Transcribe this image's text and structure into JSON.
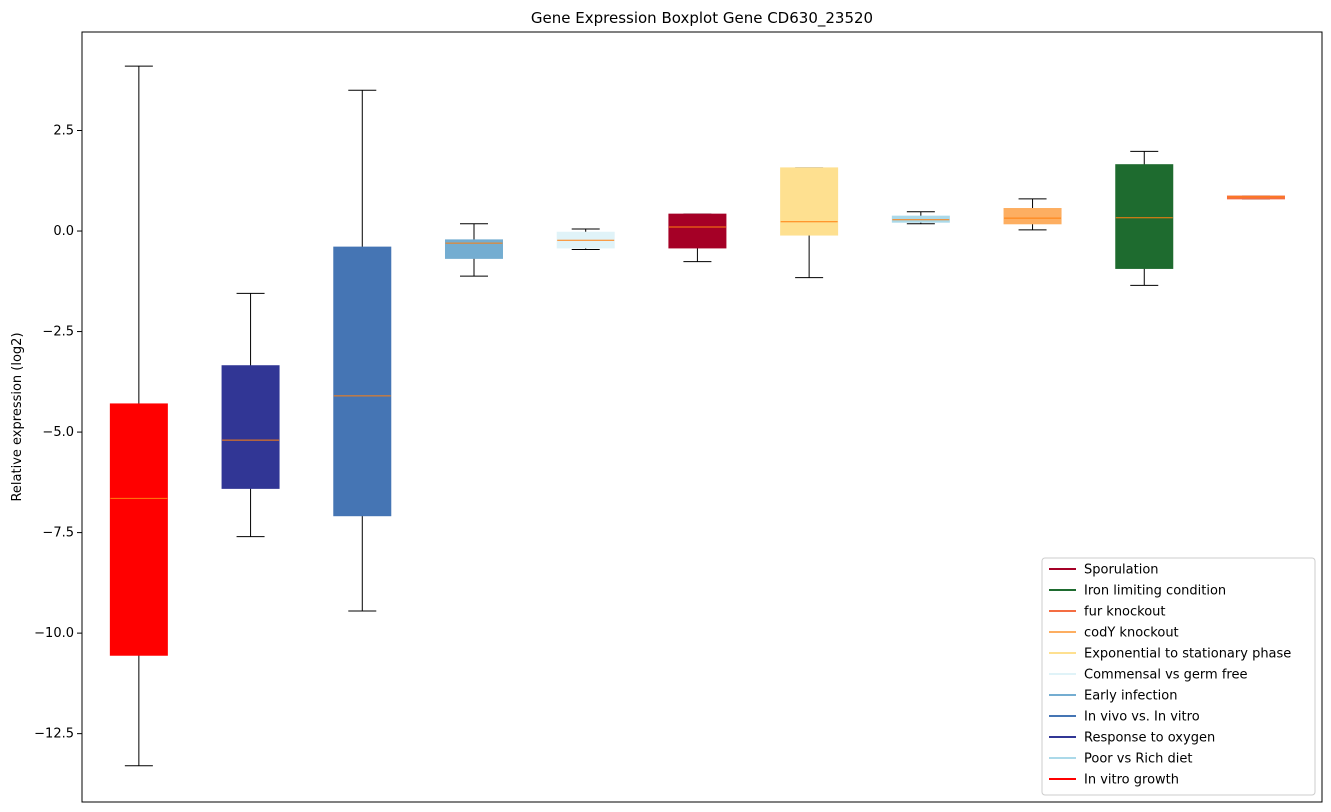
{
  "chart_data": {
    "type": "boxplot",
    "title": "Gene Expression Boxplot Gene CD630_23520",
    "xlabel": "",
    "ylabel": "Relative expression (log2)",
    "ylim": [
      -14.2,
      4.95
    ],
    "yticks": [
      -12.5,
      -10.0,
      -7.5,
      -5.0,
      -2.5,
      0.0,
      2.5
    ],
    "ytick_labels": [
      "−12.5",
      "−10.0",
      "−7.5",
      "−5.0",
      "−2.5",
      "0.0",
      "2.5"
    ],
    "grid": false,
    "legend_position": "lower-right",
    "median_color": "#ff7f0e",
    "boxes": [
      {
        "color": "#ff0000",
        "whisker_low": -13.3,
        "q1": -10.55,
        "median": -6.65,
        "q3": -4.3,
        "whisker_high": 4.1
      },
      {
        "color": "#313695",
        "whisker_low": -7.6,
        "q1": -6.4,
        "median": -5.2,
        "q3": -3.35,
        "whisker_high": -1.55
      },
      {
        "color": "#4575b4",
        "whisker_low": -9.45,
        "q1": -7.08,
        "median": -4.1,
        "q3": -0.4,
        "whisker_high": 3.5
      },
      {
        "color": "#74add1",
        "whisker_low": -1.12,
        "q1": -0.68,
        "median": -0.3,
        "q3": -0.22,
        "whisker_high": 0.18
      },
      {
        "color": "#e0f3f8",
        "whisker_low": -0.46,
        "q1": -0.42,
        "median": -0.23,
        "q3": -0.03,
        "whisker_high": 0.05
      },
      {
        "color": "#a50026",
        "whisker_low": -0.76,
        "q1": -0.42,
        "median": 0.1,
        "q3": 0.42,
        "whisker_high": 0.42
      },
      {
        "color": "#fee090",
        "whisker_low": -1.16,
        "q1": -0.1,
        "median": 0.23,
        "q3": 1.57,
        "whisker_high": 1.57
      },
      {
        "color": "#abd9e9",
        "whisker_low": 0.18,
        "q1": 0.22,
        "median": 0.28,
        "q3": 0.37,
        "whisker_high": 0.48
      },
      {
        "color": "#fdae61",
        "whisker_low": 0.03,
        "q1": 0.18,
        "median": 0.32,
        "q3": 0.56,
        "whisker_high": 0.8
      },
      {
        "color": "#1e6b2f",
        "whisker_low": -1.35,
        "q1": -0.93,
        "median": 0.33,
        "q3": 1.65,
        "whisker_high": 1.98
      },
      {
        "color": "#f46d43",
        "whisker_low": 0.8,
        "q1": 0.8,
        "median": 0.85,
        "q3": 0.87,
        "whisker_high": 0.87
      }
    ],
    "legend": [
      {
        "label": "Sporulation",
        "color": "#a50026"
      },
      {
        "label": "Iron limiting condition",
        "color": "#1e6b2f"
      },
      {
        "label": "fur knockout",
        "color": "#f46d43"
      },
      {
        "label": "codY knockout",
        "color": "#fdae61"
      },
      {
        "label": "Exponential to stationary phase",
        "color": "#fee090"
      },
      {
        "label": "Commensal vs germ free",
        "color": "#e0f3f8"
      },
      {
        "label": "Early infection",
        "color": "#74add1"
      },
      {
        "label": "In vivo vs. In vitro",
        "color": "#4575b4"
      },
      {
        "label": "Response to oxygen",
        "color": "#313695"
      },
      {
        "label": "Poor vs Rich diet",
        "color": "#abd9e9"
      },
      {
        "label": "In vitro growth",
        "color": "#ff0000"
      }
    ]
  }
}
